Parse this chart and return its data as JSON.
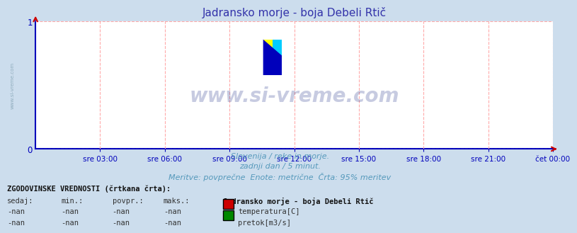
{
  "title": "Jadransko morje - boja Debeli Rtič",
  "title_color": "#3333aa",
  "bg_color": "#ccdded",
  "plot_bg_color": "#ffffff",
  "grid_color": "#ffaaaa",
  "axis_color": "#0000bb",
  "xlim": [
    0,
    288
  ],
  "ylim": [
    0,
    1
  ],
  "yticks": [
    0,
    1
  ],
  "xtick_labels": [
    "sre 03:00",
    "sre 06:00",
    "sre 09:00",
    "sre 12:00",
    "sre 15:00",
    "sre 18:00",
    "sre 21:00",
    "čet 00:00"
  ],
  "xtick_positions": [
    36,
    72,
    108,
    144,
    180,
    216,
    252,
    288
  ],
  "watermark_text": "www.si-vreme.com",
  "watermark_color": "#223388",
  "watermark_fontsize": 20,
  "subtitle_lines": [
    "Slovenija / reke in morje.",
    "zadnji dan / 5 minut.",
    "Meritve: povprečne  Enote: metrične  Črta: 95% meritev"
  ],
  "subtitle_color": "#5599bb",
  "footer_title": "ZGODOVINSKE VREDNOSTI (črtkana črta):",
  "footer_col_headers": [
    "sedaj:",
    "min.:",
    "povpr.:",
    "maks.:"
  ],
  "footer_station": "Jadransko morje - boja Debeli Rtič",
  "footer_rows": [
    {
      "values": [
        "-nan",
        "-nan",
        "-nan",
        "-nan"
      ],
      "color": "#cc0000",
      "label": "temperatura[C]"
    },
    {
      "values": [
        "-nan",
        "-nan",
        "-nan",
        "-nan"
      ],
      "color": "#008800",
      "label": "pretok[m3/s]"
    }
  ],
  "left_watermark_text": "www.si-vreme.com",
  "left_watermark_color": "#7799aa",
  "logo_colors": [
    "#ffff00",
    "#00ccff",
    "#0000bb"
  ]
}
